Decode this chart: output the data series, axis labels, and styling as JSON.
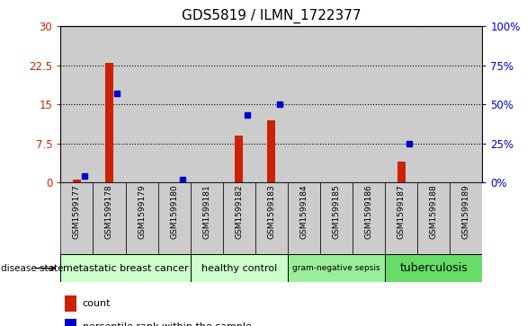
{
  "title": "GDS5819 / ILMN_1722377",
  "samples": [
    "GSM1599177",
    "GSM1599178",
    "GSM1599179",
    "GSM1599180",
    "GSM1599181",
    "GSM1599182",
    "GSM1599183",
    "GSM1599184",
    "GSM1599185",
    "GSM1599186",
    "GSM1599187",
    "GSM1599188",
    "GSM1599189"
  ],
  "counts": [
    0.5,
    23,
    0,
    0,
    0,
    9,
    12,
    0,
    0,
    0,
    4,
    0,
    0
  ],
  "percentiles": [
    4,
    57,
    0,
    2,
    0,
    43,
    50,
    0,
    0,
    0,
    25,
    0,
    0
  ],
  "disease_groups": [
    {
      "label": "metastatic breast cancer",
      "start": 0,
      "end": 4,
      "color": "#ccffcc",
      "fontsize": 8
    },
    {
      "label": "healthy control",
      "start": 4,
      "end": 7,
      "color": "#ccffcc",
      "fontsize": 8
    },
    {
      "label": "gram-negative sepsis",
      "start": 7,
      "end": 10,
      "color": "#99ee99",
      "fontsize": 6.5
    },
    {
      "label": "tuberculosis",
      "start": 10,
      "end": 13,
      "color": "#66dd66",
      "fontsize": 9
    }
  ],
  "y_left_ticks": [
    0,
    7.5,
    15,
    22.5,
    30
  ],
  "y_right_ticks": [
    0,
    25,
    50,
    75,
    100
  ],
  "bar_color": "#cc2200",
  "dot_color": "#0000cc",
  "sample_bg_color": "#cccccc",
  "legend_count_color": "#cc2200",
  "legend_pct_color": "#0000cc"
}
